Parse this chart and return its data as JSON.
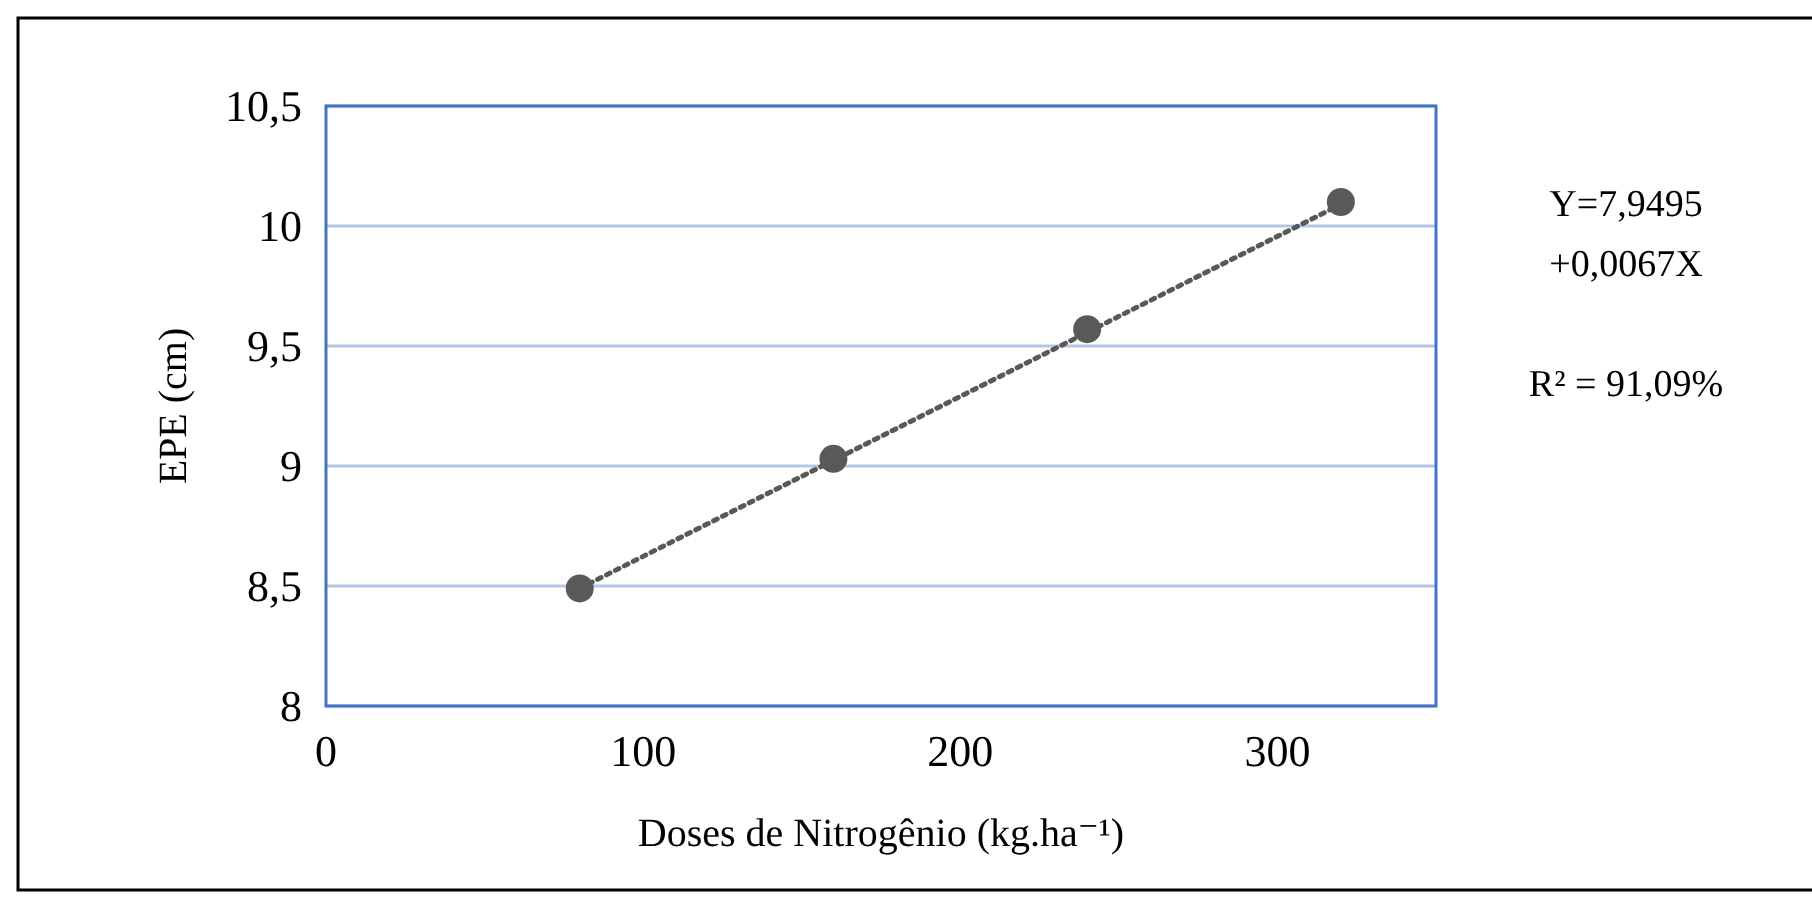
{
  "chart_data": {
    "type": "scatter",
    "xlabel": "Doses de Nitrogênio (kg.ha⁻¹)",
    "ylabel": "EPE (cm)",
    "xlim": [
      0,
      350
    ],
    "xticks": [
      0,
      100,
      200,
      300
    ],
    "ylim": [
      8,
      10.5
    ],
    "yticks": [
      8,
      {
        "value": 8.5,
        "label": "8,5"
      },
      9,
      {
        "value": 9.5,
        "label": "9,5"
      },
      10,
      {
        "value": 10.5,
        "label": "10,5"
      }
    ],
    "grid": "y",
    "marker": "circle",
    "series": [
      {
        "type": "line",
        "color": "#595959",
        "line_style": "dotted",
        "marker": "none",
        "x": [
          80,
          320
        ],
        "values": [
          8.49,
          10.09
        ]
      },
      {
        "color": "#595959",
        "x": [
          80,
          160,
          240,
          320
        ],
        "values": [
          8.49,
          9.03,
          9.57,
          10.1
        ]
      }
    ],
    "annotations": [
      "Y=7,9495",
      "+0,0067X",
      "R² = 91,09%"
    ]
  }
}
